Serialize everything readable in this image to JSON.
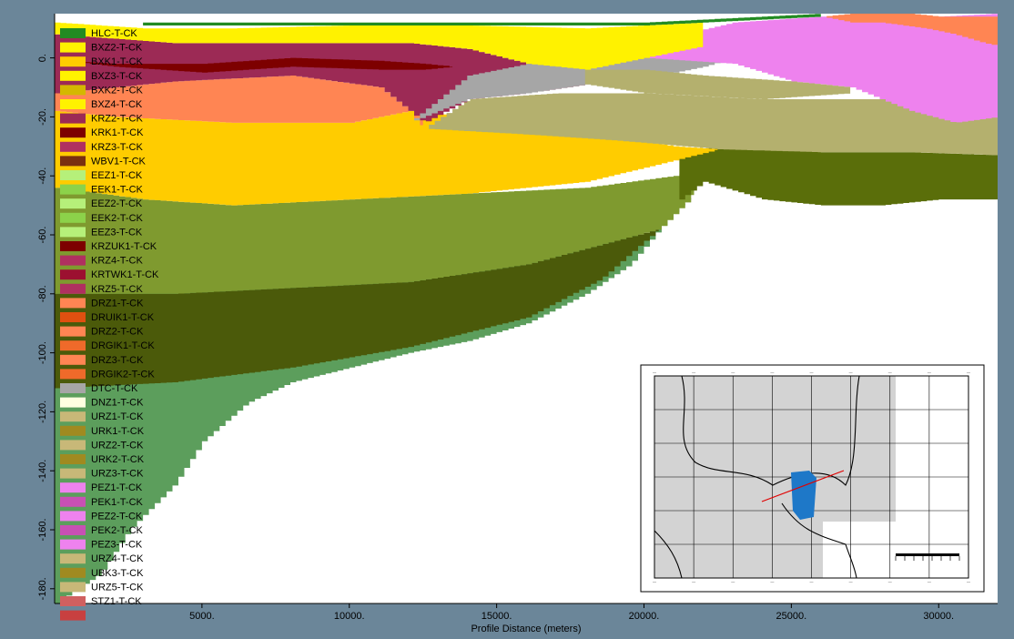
{
  "chart_data": {
    "type": "area",
    "title": "",
    "xlabel": "Profile Distance (meters)",
    "ylabel": "",
    "xlim": [
      0,
      32000
    ],
    "ylim": [
      -185,
      15
    ],
    "x_ticks": [
      "5000.",
      "10000.",
      "15000.",
      "20000.",
      "25000.",
      "30000."
    ],
    "y_ticks": [
      "0.",
      "-20.",
      "-40.",
      "-60.",
      "-80.",
      "-100.",
      "-120.",
      "-140.",
      "-160.",
      "-180."
    ],
    "background_color": "#6b8699",
    "colors": {
      "surface": "#228b22",
      "yellow": "#fff200",
      "orange_yellow": "#ffcc00",
      "maroon": "#9c2a55",
      "dark_red": "#7d0000",
      "salmon": "#ff8553",
      "gray": "#a6a6a6",
      "pink": "#ee82ee",
      "tan": "#b4b06e",
      "olive_dark": "#5a6e0a",
      "olive": "#7f9a2f",
      "dark_olive": "#4b5a0a",
      "green": "#5c9e5c"
    },
    "layers": [
      {
        "name": "green-bottom",
        "color": "#5c9e5c",
        "top": [
          [
            0,
            -50
          ],
          [
            4000,
            -52
          ],
          [
            8000,
            -55
          ],
          [
            12000,
            -58
          ],
          [
            16000,
            -62
          ],
          [
            20000,
            -60
          ],
          [
            21700,
            -45
          ]
        ],
        "bottom": [
          [
            0,
            -185
          ],
          [
            1500,
            -175
          ],
          [
            2500,
            -160
          ],
          [
            4000,
            -145
          ],
          [
            5000,
            -130
          ],
          [
            6500,
            -117
          ],
          [
            8000,
            -110
          ],
          [
            10000,
            -105
          ],
          [
            12000,
            -100
          ],
          [
            14000,
            -96
          ],
          [
            16000,
            -90
          ],
          [
            18000,
            -80
          ],
          [
            19500,
            -70
          ],
          [
            20500,
            -58
          ],
          [
            21200,
            -50
          ],
          [
            21700,
            -45
          ]
        ]
      },
      {
        "name": "dark-olive-band",
        "color": "#4b5a0a",
        "top": [
          [
            0,
            -80
          ],
          [
            4000,
            -80
          ],
          [
            8000,
            -78
          ],
          [
            12000,
            -76
          ],
          [
            16000,
            -70
          ],
          [
            19000,
            -62
          ],
          [
            20500,
            -58
          ]
        ],
        "bottom": [
          [
            0,
            -112
          ],
          [
            4000,
            -110
          ],
          [
            8000,
            -105
          ],
          [
            12000,
            -98
          ],
          [
            16000,
            -88
          ],
          [
            18500,
            -75
          ],
          [
            20000,
            -62
          ],
          [
            20500,
            -58
          ]
        ]
      },
      {
        "name": "olive-upper",
        "color": "#7f9a2f",
        "top": [
          [
            0,
            -44
          ],
          [
            3000,
            -48
          ],
          [
            6000,
            -50
          ],
          [
            10000,
            -48
          ],
          [
            14000,
            -46
          ],
          [
            18000,
            -44
          ],
          [
            21000,
            -40
          ],
          [
            21700,
            -38
          ]
        ],
        "bottom": [
          [
            0,
            -80
          ],
          [
            4000,
            -80
          ],
          [
            8000,
            -78
          ],
          [
            12000,
            -76
          ],
          [
            16000,
            -70
          ],
          [
            19000,
            -62
          ],
          [
            20500,
            -58
          ],
          [
            21500,
            -48
          ],
          [
            21700,
            -45
          ]
        ]
      },
      {
        "name": "olive-dark-right",
        "color": "#5a6e0a",
        "top": [
          [
            21000,
            -32
          ],
          [
            22500,
            -30
          ],
          [
            26000,
            -32
          ],
          [
            29000,
            -32
          ],
          [
            32000,
            -33
          ]
        ],
        "bottom": [
          [
            21200,
            -48
          ],
          [
            22000,
            -42
          ],
          [
            24000,
            -48
          ],
          [
            26000,
            -50
          ],
          [
            28000,
            -50
          ],
          [
            30000,
            -48
          ],
          [
            32000,
            -48
          ]
        ]
      },
      {
        "name": "orange-yellow-main",
        "color": "#ffcc00",
        "top": [
          [
            0,
            -18
          ],
          [
            2000,
            -20
          ],
          [
            6000,
            -22
          ],
          [
            10000,
            -22
          ],
          [
            12000,
            -18
          ],
          [
            14000,
            -20
          ],
          [
            18000,
            -25
          ],
          [
            21000,
            -30
          ],
          [
            22500,
            -31
          ]
        ],
        "bottom": [
          [
            0,
            -44
          ],
          [
            3000,
            -48
          ],
          [
            6000,
            -50
          ],
          [
            10000,
            -48
          ],
          [
            14000,
            -46
          ],
          [
            18000,
            -42
          ],
          [
            20500,
            -36
          ],
          [
            22500,
            -31
          ]
        ]
      },
      {
        "name": "tan-right",
        "color": "#b4b06e",
        "top": [
          [
            12500,
            -24
          ],
          [
            14000,
            -14
          ],
          [
            17000,
            -12
          ],
          [
            20000,
            -12
          ],
          [
            24000,
            -14
          ],
          [
            28000,
            -14
          ],
          [
            32000,
            -14
          ]
        ],
        "bottom": [
          [
            12500,
            -24
          ],
          [
            16000,
            -26
          ],
          [
            19000,
            -28
          ],
          [
            22500,
            -31
          ],
          [
            26000,
            -32
          ],
          [
            29000,
            -32
          ],
          [
            32000,
            -33
          ]
        ]
      },
      {
        "name": "salmon-band",
        "color": "#ff8553",
        "top": [
          [
            0,
            -12
          ],
          [
            4000,
            -8
          ],
          [
            8000,
            -6
          ],
          [
            11000,
            -10
          ],
          [
            12500,
            -22
          ]
        ],
        "bottom": [
          [
            0,
            -18
          ],
          [
            2000,
            -20
          ],
          [
            6000,
            -22
          ],
          [
            10000,
            -22
          ],
          [
            12000,
            -18
          ],
          [
            12500,
            -24
          ]
        ]
      },
      {
        "name": "maroon-band",
        "color": "#9c2a55",
        "top": [
          [
            0,
            8
          ],
          [
            4000,
            5
          ],
          [
            8000,
            5
          ],
          [
            12000,
            5
          ],
          [
            14000,
            3
          ],
          [
            16000,
            -2
          ],
          [
            18000,
            -4
          ]
        ],
        "bottom": [
          [
            0,
            -12
          ],
          [
            4000,
            -8
          ],
          [
            8000,
            -6
          ],
          [
            11000,
            -10
          ],
          [
            12500,
            -22
          ],
          [
            14000,
            -14
          ],
          [
            16000,
            -12
          ],
          [
            18000,
            -9
          ]
        ]
      },
      {
        "name": "dark-red-lens",
        "color": "#7d0000",
        "top": [
          [
            400,
            -1
          ],
          [
            2000,
            -2
          ],
          [
            5000,
            -2
          ],
          [
            8000,
            0
          ],
          [
            11000,
            -1
          ],
          [
            12500,
            -2
          ],
          [
            13500,
            -3
          ]
        ],
        "bottom": [
          [
            400,
            -1
          ],
          [
            2000,
            -3
          ],
          [
            5000,
            -5
          ],
          [
            8000,
            -3
          ],
          [
            11000,
            -4
          ],
          [
            12500,
            -4
          ],
          [
            13500,
            -3
          ]
        ]
      },
      {
        "name": "gray-band",
        "color": "#a6a6a6",
        "top": [
          [
            12000,
            -22
          ],
          [
            14000,
            -6
          ],
          [
            16000,
            -2
          ],
          [
            18000,
            0
          ],
          [
            20000,
            1
          ],
          [
            22000,
            4
          ],
          [
            23000,
            6
          ]
        ],
        "bottom": [
          [
            12000,
            -22
          ],
          [
            14000,
            -14
          ],
          [
            16000,
            -12
          ],
          [
            18000,
            -9
          ],
          [
            20000,
            -7
          ],
          [
            22000,
            -3
          ],
          [
            23000,
            0
          ]
        ]
      },
      {
        "name": "pink-right",
        "color": "#ee82ee",
        "top": [
          [
            20000,
            5
          ],
          [
            23000,
            12
          ],
          [
            26000,
            14
          ],
          [
            28000,
            13
          ],
          [
            30000,
            14
          ],
          [
            32000,
            15
          ]
        ],
        "bottom": [
          [
            20000,
            0
          ],
          [
            23000,
            -2
          ],
          [
            25000,
            -8
          ],
          [
            27000,
            -10
          ],
          [
            29000,
            -18
          ],
          [
            30500,
            -22
          ],
          [
            32000,
            -20
          ]
        ]
      },
      {
        "name": "tan-upper",
        "color": "#b4b06e",
        "top": [
          [
            18000,
            -4
          ],
          [
            20000,
            -4
          ],
          [
            22000,
            -6
          ],
          [
            25000,
            -8
          ],
          [
            27000,
            -10
          ]
        ],
        "bottom": [
          [
            18000,
            -9
          ],
          [
            20000,
            -12
          ],
          [
            24000,
            -14
          ],
          [
            27000,
            -12
          ]
        ]
      },
      {
        "name": "yellow-top",
        "color": "#fff200",
        "top": [
          [
            0,
            12
          ],
          [
            3000,
            10
          ],
          [
            6000,
            10
          ],
          [
            10000,
            11
          ],
          [
            14000,
            11
          ],
          [
            18000,
            10
          ],
          [
            22000,
            12
          ]
        ],
        "bottom": [
          [
            0,
            8
          ],
          [
            4000,
            5
          ],
          [
            8000,
            5
          ],
          [
            12000,
            5
          ],
          [
            14000,
            3
          ],
          [
            16000,
            -2
          ],
          [
            18000,
            -4
          ],
          [
            20000,
            0
          ],
          [
            22000,
            4
          ]
        ]
      },
      {
        "name": "orange-cap-right",
        "color": "#ff8553",
        "top": [
          [
            26000,
            14
          ],
          [
            27000,
            15
          ],
          [
            29000,
            15
          ],
          [
            30000,
            14
          ],
          [
            32000,
            14
          ]
        ],
        "bottom": [
          [
            26000,
            14
          ],
          [
            27000,
            12
          ],
          [
            28000,
            12
          ],
          [
            29500,
            10
          ],
          [
            30500,
            8
          ],
          [
            31500,
            5
          ],
          [
            32000,
            4
          ]
        ]
      },
      {
        "name": "surface-line",
        "color": "#228b22",
        "top": [
          [
            3000,
            12
          ],
          [
            6000,
            12
          ],
          [
            8000,
            12
          ],
          [
            12000,
            12
          ],
          [
            16000,
            12
          ],
          [
            20000,
            12
          ],
          [
            22000,
            13
          ],
          [
            24000,
            14
          ],
          [
            26000,
            15
          ]
        ],
        "bottom": [
          [
            3000,
            11
          ],
          [
            6000,
            11
          ],
          [
            8000,
            11
          ],
          [
            12000,
            11
          ],
          [
            16000,
            11
          ],
          [
            20000,
            11
          ],
          [
            22000,
            12
          ],
          [
            24000,
            13
          ],
          [
            26000,
            14
          ]
        ]
      }
    ],
    "legend": [
      {
        "label": "HLC-T-CK",
        "color": "#228b22"
      },
      {
        "label": "BXZ2-T-CK",
        "color": "#fff200"
      },
      {
        "label": "BXK1-T-CK",
        "color": "#ffcc00"
      },
      {
        "label": "BXZ3-T-CK",
        "color": "#fff200"
      },
      {
        "label": "BXK2-T-CK",
        "color": "#d4b800"
      },
      {
        "label": "BXZ4-T-CK",
        "color": "#fff200"
      },
      {
        "label": "KRZ2-T-CK",
        "color": "#9c2a55"
      },
      {
        "label": "KRK1-T-CK",
        "color": "#7d0000"
      },
      {
        "label": "KRZ3-T-CK",
        "color": "#b03060"
      },
      {
        "label": "WBV1-T-CK",
        "color": "#7a3010"
      },
      {
        "label": "EEZ1-T-CK",
        "color": "#b6f07a"
      },
      {
        "label": "EEK1-T-CK",
        "color": "#8cd24a"
      },
      {
        "label": "EEZ2-T-CK",
        "color": "#b6f07a"
      },
      {
        "label": "EEK2-T-CK",
        "color": "#8cd24a"
      },
      {
        "label": "EEZ3-T-CK",
        "color": "#b6f07a"
      },
      {
        "label": "KRZUK1-T-CK",
        "color": "#7d0000"
      },
      {
        "label": "KRZ4-T-CK",
        "color": "#b03060"
      },
      {
        "label": "KRTWK1-T-CK",
        "color": "#9c1030"
      },
      {
        "label": "KRZ5-T-CK",
        "color": "#b03060"
      },
      {
        "label": "DRZ1-T-CK",
        "color": "#ff8553"
      },
      {
        "label": "DRUIK1-T-CK",
        "color": "#e05010"
      },
      {
        "label": "DRZ2-T-CK",
        "color": "#ff8553"
      },
      {
        "label": "DRGIK1-T-CK",
        "color": "#ef6a2a"
      },
      {
        "label": "DRZ3-T-CK",
        "color": "#ff8553"
      },
      {
        "label": "DRGIK2-T-CK",
        "color": "#ef6a2a"
      },
      {
        "label": "DTC-T-CK",
        "color": "#a6a6a6"
      },
      {
        "label": "DNZ1-T-CK",
        "color": "#ffffe0"
      },
      {
        "label": "URZ1-T-CK",
        "color": "#c8b878"
      },
      {
        "label": "URK1-T-CK",
        "color": "#a08a20"
      },
      {
        "label": "URZ2-T-CK",
        "color": "#c8b878"
      },
      {
        "label": "URK2-T-CK",
        "color": "#a08a20"
      },
      {
        "label": "URZ3-T-CK",
        "color": "#c8b878"
      },
      {
        "label": "PEZ1-T-CK",
        "color": "#ee82ee"
      },
      {
        "label": "PEK1-T-CK",
        "color": "#c850b4"
      },
      {
        "label": "PEZ2-T-CK",
        "color": "#ee82ee"
      },
      {
        "label": "PEK2-T-CK",
        "color": "#c850b4"
      },
      {
        "label": "PEZ3-T-CK",
        "color": "#ee82ee"
      },
      {
        "label": "URZ4-T-CK",
        "color": "#c8b878"
      },
      {
        "label": "UBK3-T-CK",
        "color": "#a08a20"
      },
      {
        "label": "URZ5-T-CK",
        "color": "#c8b878"
      },
      {
        "label": "STZ1-T-CK",
        "color": "#d06060"
      },
      {
        "label": "",
        "color": "#c84040"
      }
    ],
    "legend_placement": "left",
    "inset_map": {
      "placement": "bottom-right",
      "land_color": "#d3d3d3",
      "highlight_color": "#1e78c8",
      "profile_line_color": "#e00000",
      "grid": true
    }
  }
}
